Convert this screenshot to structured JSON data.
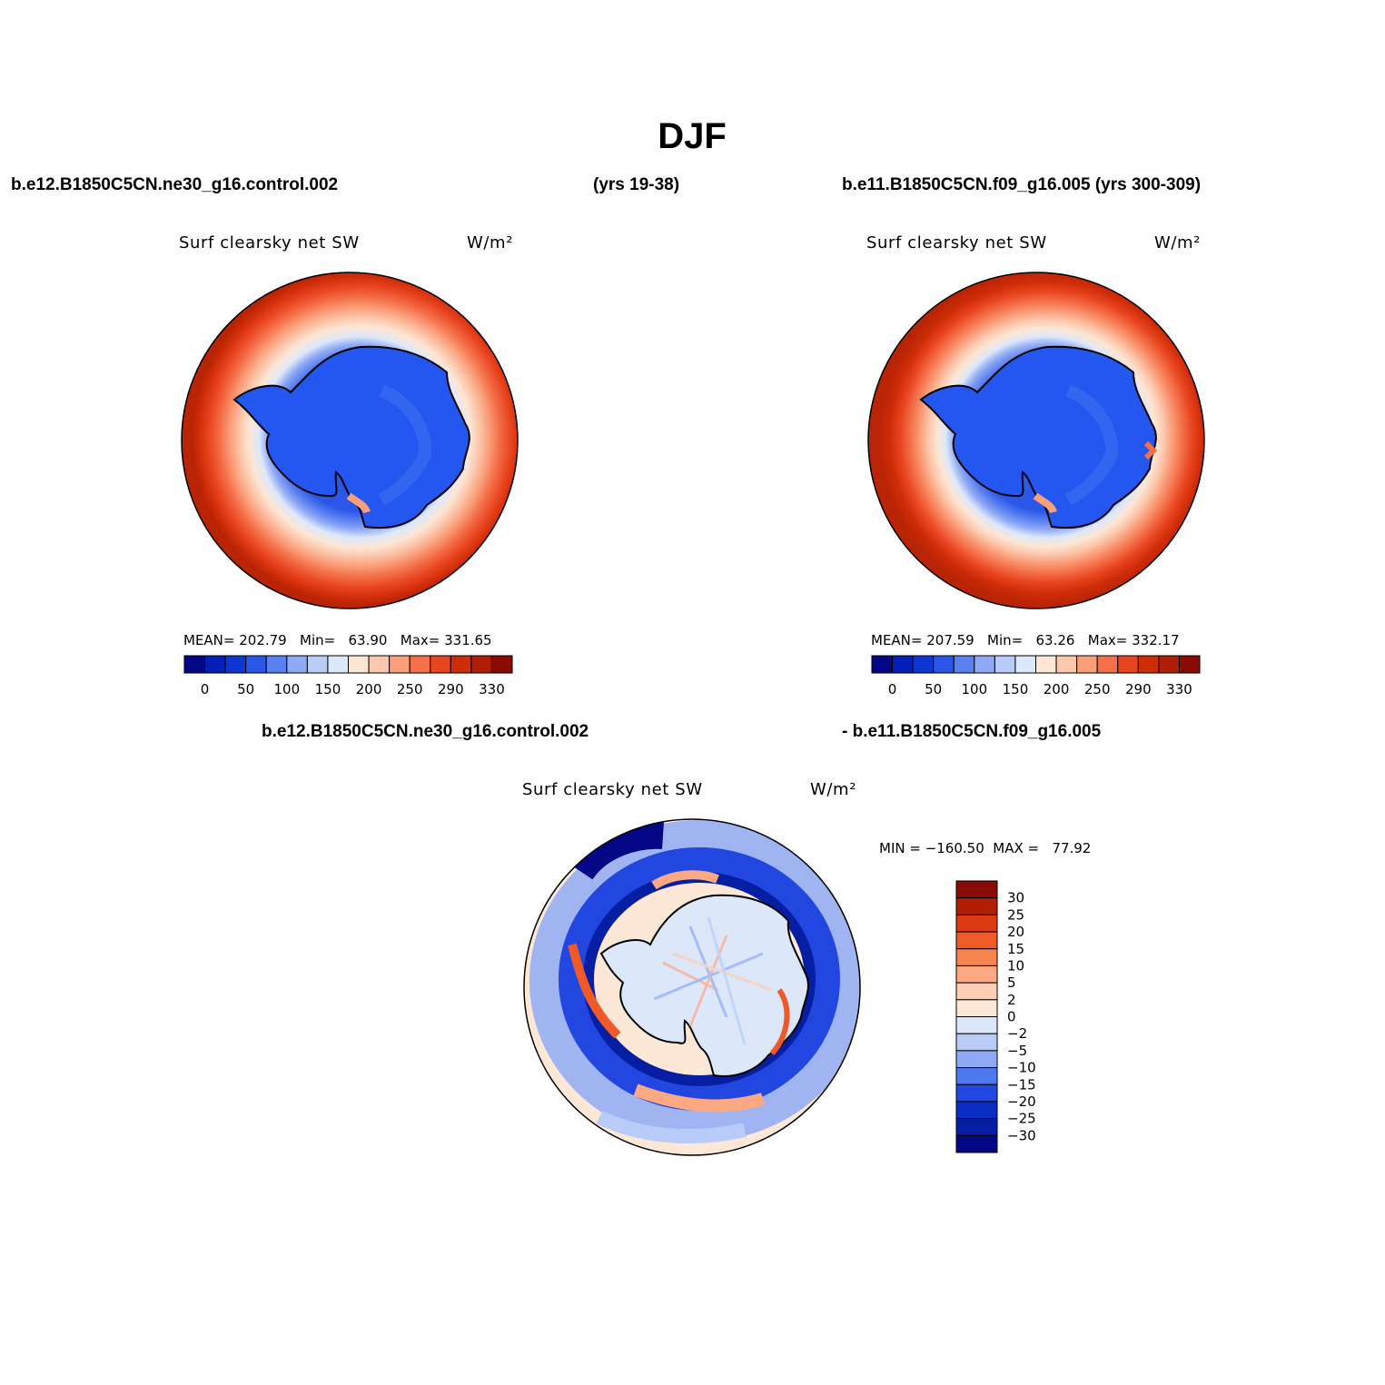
{
  "figure": {
    "title": "DJF",
    "top_left_case": "b.e12.B1850C5CN.ne30_g16.control.002",
    "top_left_years": "(yrs 19-38)",
    "top_right_case": "b.e11.B1850C5CN.f09_g16.005 (yrs 300-309)",
    "diff_case_a": "b.e12.B1850C5CN.ne30_g16.control.002",
    "diff_case_b": "- b.e11.B1850C5CN.f09_g16.005"
  },
  "panels": {
    "left": {
      "variable": "Surf clearsky net SW",
      "units": "W/m²",
      "stats": "MEAN= 202.79   Min=   63.90   Max= 331.65"
    },
    "right": {
      "variable": "Surf clearsky net SW",
      "units": "W/m²",
      "stats": "MEAN= 207.59   Min=   63.26   Max= 332.17"
    },
    "diff": {
      "variable": "Surf clearsky net SW",
      "units": "W/m²",
      "stats": "MIN = −160.50  MAX =   77.92"
    }
  },
  "colorbars": {
    "absolute": {
      "tick_labels": [
        "0",
        "50",
        "100",
        "150",
        "200",
        "250",
        "290",
        "330"
      ],
      "colors": [
        "#040785",
        "#0420b8",
        "#0d36d4",
        "#2a57e8",
        "#5a81f0",
        "#8eaaf5",
        "#b9ccf8",
        "#dde8fa",
        "#fde6d4",
        "#fcc8ad",
        "#fa9f7a",
        "#f47049",
        "#e84420",
        "#cf2c08",
        "#b01e06",
        "#8a0a04"
      ]
    },
    "difference": {
      "tick_labels": [
        "30",
        "25",
        "20",
        "15",
        "10",
        "5",
        "2",
        "0",
        "−2",
        "−5",
        "−10",
        "−15",
        "−20",
        "−25",
        "−30"
      ],
      "colors": [
        "#8a0a04",
        "#b01e06",
        "#dc3a10",
        "#f05a28",
        "#f7844f",
        "#fba883",
        "#fdcdb4",
        "#fde8d8",
        "#dce8fa",
        "#b9ccf8",
        "#8eaaf5",
        "#4e78ee",
        "#2147e0",
        "#0a2cc2",
        "#061fa2",
        "#040785"
      ]
    }
  }
}
